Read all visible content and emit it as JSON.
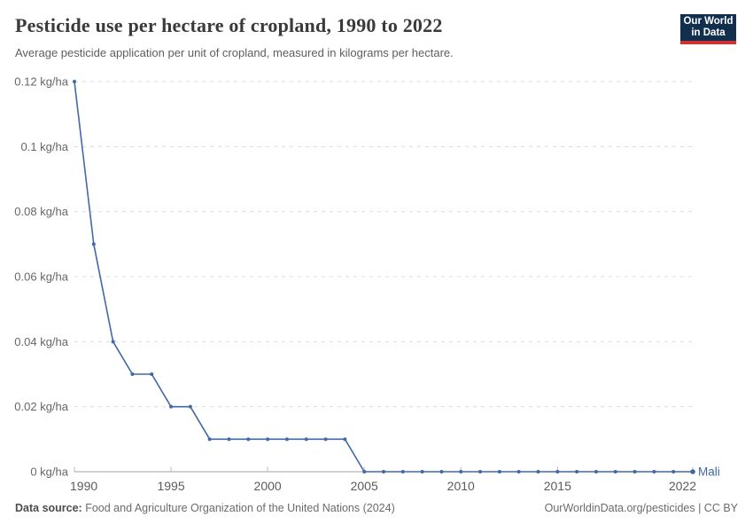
{
  "header": {
    "title": "Pesticide use per hectare of cropland, 1990 to 2022",
    "subtitle": "Average pesticide application per unit of cropland, measured in kilograms per hectare."
  },
  "logo": {
    "line1": "Our World",
    "line2": "in Data",
    "bg_color": "#12304e",
    "accent_color": "#cf3235",
    "text_color": "#ffffff"
  },
  "chart_data": {
    "type": "line",
    "title": "Pesticide use per hectare of cropland, 1990 to 2022",
    "xlabel": "",
    "ylabel": "kg/ha",
    "unit": "kg/ha",
    "grid": true,
    "ylim": [
      0,
      0.12
    ],
    "x": [
      1990,
      1991,
      1992,
      1993,
      1994,
      1995,
      1996,
      1997,
      1998,
      1999,
      2000,
      2001,
      2002,
      2003,
      2004,
      2005,
      2006,
      2007,
      2008,
      2009,
      2010,
      2011,
      2012,
      2013,
      2014,
      2015,
      2016,
      2017,
      2018,
      2019,
      2020,
      2021,
      2022
    ],
    "series": [
      {
        "name": "Mali",
        "color": "#4269a5",
        "values": [
          0.12,
          0.07,
          0.04,
          0.03,
          0.03,
          0.02,
          0.02,
          0.01,
          0.01,
          0.01,
          0.01,
          0.01,
          0.01,
          0.01,
          0.01,
          0,
          0,
          0,
          0,
          0,
          0,
          0,
          0,
          0,
          0,
          0,
          0,
          0,
          0,
          0,
          0,
          0,
          0
        ]
      }
    ],
    "yticks": [
      {
        "value": 0,
        "label": "0 kg/ha"
      },
      {
        "value": 0.02,
        "label": "0.02 kg/ha"
      },
      {
        "value": 0.04,
        "label": "0.04 kg/ha"
      },
      {
        "value": 0.06,
        "label": "0.06 kg/ha"
      },
      {
        "value": 0.08,
        "label": "0.08 kg/ha"
      },
      {
        "value": 0.1,
        "label": "0.1 kg/ha"
      },
      {
        "value": 0.12,
        "label": "0.12 kg/ha"
      }
    ],
    "xticks": [
      {
        "value": 1990,
        "label": "1990"
      },
      {
        "value": 1995,
        "label": "1995"
      },
      {
        "value": 2000,
        "label": "2000"
      },
      {
        "value": 2005,
        "label": "2005"
      },
      {
        "value": 2010,
        "label": "2010"
      },
      {
        "value": 2015,
        "label": "2015"
      },
      {
        "value": 2022,
        "label": "2022"
      }
    ],
    "colors": {
      "gridline": "#dcdcdc",
      "axis": "#a2a2a2",
      "tick": "#b8b8b8",
      "ytick_label": "#666666",
      "xtick_label": "#5b5b5b"
    },
    "legend_position": "end-of-line"
  },
  "footer": {
    "source_label": "Data source:",
    "source_text": "Food and Agriculture Organization of the United Nations (2024)",
    "link_text": "OurWorldinData.org/pesticides",
    "separator": " | ",
    "license_text": "CC BY"
  }
}
